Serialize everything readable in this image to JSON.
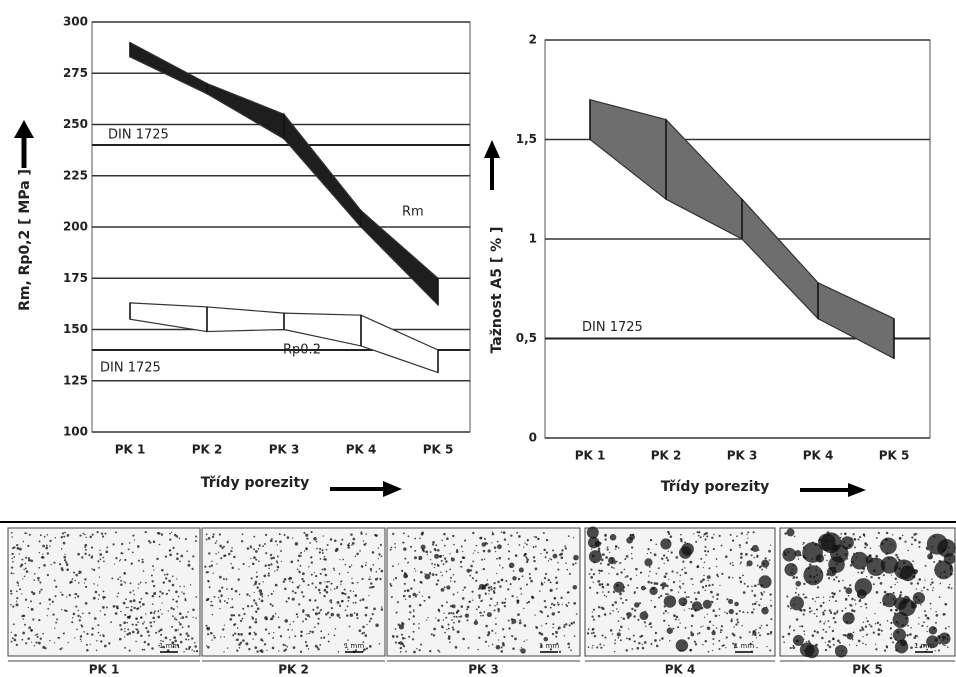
{
  "chart_data": [
    {
      "type": "band",
      "y_label": "Rm, Rp0,2 [ MPa ]",
      "x_label": "Třídy porezity",
      "categories": [
        "PK 1",
        "PK 2",
        "PK 3",
        "PK 4",
        "PK 5"
      ],
      "series": [
        {
          "name": "Rm",
          "color": "#1e1e1e",
          "low": [
            283,
            265,
            243,
            200,
            162
          ],
          "high": [
            290,
            270,
            255,
            208,
            175
          ]
        },
        {
          "name": "Rp0.2",
          "color": "#ffffff",
          "low": [
            155,
            149,
            150,
            142,
            129
          ],
          "high": [
            163,
            161,
            158,
            157,
            140
          ]
        }
      ],
      "reference_lines": [
        {
          "value": 240,
          "label": "DIN 1725"
        },
        {
          "value": 140,
          "label": "DIN 1725"
        }
      ],
      "ylim": [
        100,
        300
      ],
      "yticks": [
        100,
        125,
        150,
        175,
        200,
        225,
        250,
        275,
        300
      ],
      "grid": true
    },
    {
      "type": "band",
      "y_label": "Tažnost A5 [ % ]",
      "x_label": "Třídy porezity",
      "categories": [
        "PK 1",
        "PK 2",
        "PK 3",
        "PK 4",
        "PK 5"
      ],
      "series": [
        {
          "color": "#6e6e6e",
          "low": [
            1.5,
            1.2,
            1.0,
            0.6,
            0.4
          ],
          "high": [
            1.7,
            1.6,
            1.2,
            0.78,
            0.6
          ]
        }
      ],
      "reference_lines": [
        {
          "value": 0.5,
          "label": "DIN 1725"
        }
      ],
      "ylim": [
        0,
        2
      ],
      "yticks": [
        0,
        {
          "value": 0.5,
          "label": "0,5"
        },
        1,
        {
          "value": 1.5,
          "label": "1,5"
        },
        2
      ],
      "grid": true
    }
  ],
  "micrographs": {
    "captions": [
      "PK 1",
      "PK 2",
      "PK 3",
      "PK 4",
      "PK 5"
    ],
    "scale_label": "1 mm"
  }
}
